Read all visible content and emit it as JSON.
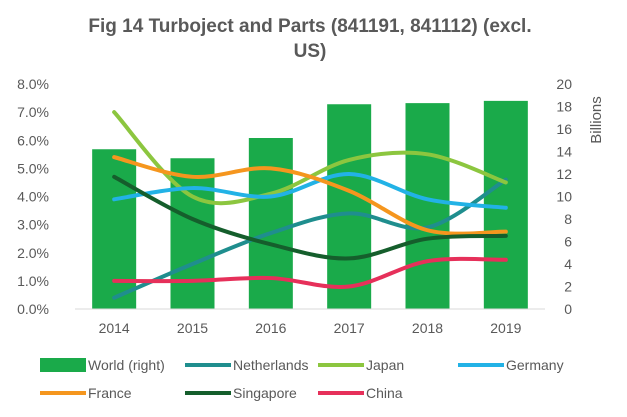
{
  "chart_data": {
    "type": "bar+line",
    "title_line1": "Fig 14 Turboject and Parts (841191, 841112) (excl.",
    "title_line2": "US)",
    "categories": [
      "2014",
      "2015",
      "2016",
      "2017",
      "2018",
      "2019"
    ],
    "y_left": {
      "ticks": [
        "0.0%",
        "1.0%",
        "2.0%",
        "3.0%",
        "4.0%",
        "5.0%",
        "6.0%",
        "7.0%",
        "8.0%"
      ],
      "min": 0,
      "max": 8
    },
    "y_right": {
      "ticks": [
        "0",
        "2",
        "4",
        "6",
        "8",
        "10",
        "12",
        "14",
        "16",
        "18",
        "20"
      ],
      "min": 0,
      "max": 20,
      "label": "Billions"
    },
    "bar_series": {
      "name": "World (right)",
      "axis": "right",
      "color": "#1aaa4a",
      "values": [
        14.2,
        13.4,
        15.2,
        18.2,
        18.3,
        18.5
      ]
    },
    "line_series": [
      {
        "name": "Netherlands",
        "color": "#1f8e8e",
        "values": [
          0.4,
          1.6,
          2.7,
          3.4,
          2.9,
          4.6
        ]
      },
      {
        "name": "Japan",
        "color": "#8cc63f",
        "values": [
          7.0,
          4.0,
          4.1,
          5.3,
          5.5,
          4.5
        ]
      },
      {
        "name": "Germany",
        "color": "#22b2e6",
        "values": [
          3.9,
          4.3,
          4.0,
          4.8,
          3.9,
          3.6
        ]
      },
      {
        "name": "France",
        "color": "#f5961e",
        "values": [
          5.4,
          4.7,
          5.0,
          4.2,
          2.8,
          2.75
        ]
      },
      {
        "name": "Singapore",
        "color": "#155e2c",
        "values": [
          4.7,
          3.2,
          2.3,
          1.8,
          2.5,
          2.6
        ]
      },
      {
        "name": "China",
        "color": "#e6305a",
        "values": [
          1.0,
          1.0,
          1.1,
          0.8,
          1.7,
          1.75
        ]
      }
    ],
    "legend_order": [
      "World (right)",
      "Netherlands",
      "Japan",
      "Germany",
      "France",
      "Singapore",
      "China"
    ]
  }
}
